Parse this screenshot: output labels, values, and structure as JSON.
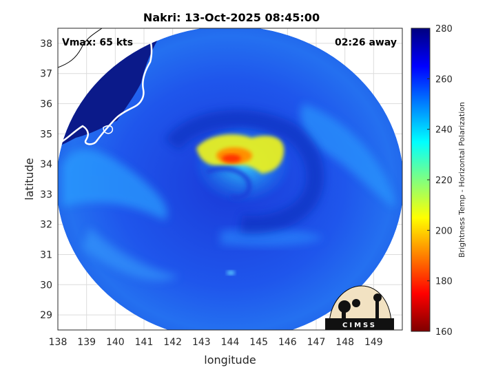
{
  "title": "Nakri: 13-Oct-2025 08:45:00",
  "annotations": {
    "vmax": "Vmax: 65 kts",
    "time_away": "02:26 away"
  },
  "map": {
    "xlabel": "longitude",
    "ylabel": "latitude",
    "lon_range": [
      138,
      150
    ],
    "lat_range": [
      28.5,
      38.5
    ],
    "lon_ticks": [
      "138",
      "139",
      "140",
      "141",
      "142",
      "143",
      "144",
      "145",
      "146",
      "147",
      "148",
      "149"
    ],
    "lat_ticks": [
      "29",
      "30",
      "31",
      "32",
      "33",
      "34",
      "35",
      "36",
      "37",
      "38"
    ],
    "grid": true,
    "storm_center": {
      "lon": 144.0,
      "lat": 33.9
    },
    "swath_center": {
      "lon": 143.8,
      "lat": 33.0
    },
    "swath_radius_deg": 5.6
  },
  "colorbar": {
    "label": "Brightness Temp - Horizontal Polarization",
    "ticks": [
      "280",
      "260",
      "240",
      "220",
      "200",
      "180",
      "160"
    ],
    "range": [
      160,
      280
    ],
    "colormap": [
      "#7f0000",
      "#ff0000",
      "#ff8000",
      "#ffff00",
      "#80ff80",
      "#00ffff",
      "#0080ff",
      "#0000ff",
      "#00007f"
    ]
  },
  "logo": {
    "text": "CIMSS"
  },
  "colors": {
    "land": "#0b1a8a",
    "ocean_background": "#1e4ae0",
    "coastline": "#ffffff"
  }
}
